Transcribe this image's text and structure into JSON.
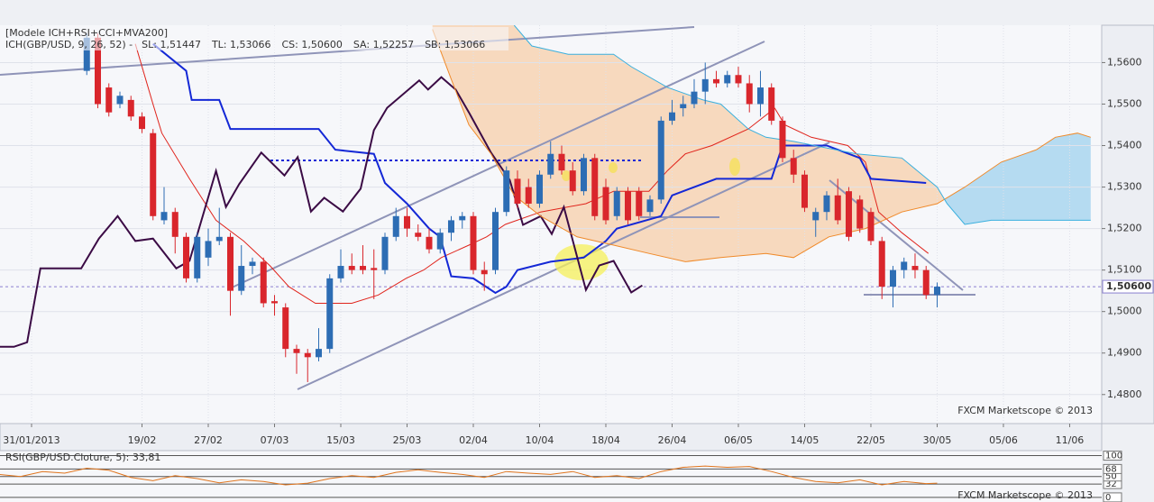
{
  "chart_data": [
    {
      "type": "candlestick",
      "title": "[Modele ICH+RSI+CCI+MVA200]",
      "subtitle": "ICH(GBP/USD, 9, 26, 52) -",
      "watermark": "FXCM Marketscope © 2013",
      "up_color": "#2d6db4",
      "down_color": "#d9262c",
      "x": [
        5,
        6,
        7,
        8,
        9,
        10,
        11,
        12,
        13,
        14,
        15,
        16,
        17,
        18,
        19,
        20,
        21,
        22,
        23,
        24,
        25,
        26,
        27,
        28,
        29,
        30,
        31,
        32,
        33,
        34,
        35,
        36,
        37,
        38,
        39,
        40,
        41,
        42,
        43,
        44,
        45,
        46,
        47,
        48,
        49,
        50,
        51,
        52,
        53,
        54,
        55,
        56,
        57,
        58,
        59,
        60,
        61,
        62,
        63,
        64,
        65,
        66,
        67,
        68,
        69,
        70,
        71,
        72,
        73,
        74,
        75,
        76,
        77,
        78,
        79,
        80,
        81,
        82
      ],
      "open": [
        1.558,
        1.566,
        1.554,
        1.55,
        1.551,
        1.547,
        1.543,
        1.522,
        1.524,
        1.518,
        1.508,
        1.513,
        1.517,
        1.518,
        1.505,
        1.511,
        1.512,
        1.5025,
        1.501,
        1.491,
        1.49,
        1.489,
        1.491,
        1.508,
        1.511,
        1.511,
        1.5105,
        1.51,
        1.518,
        1.523,
        1.519,
        1.518,
        1.515,
        1.519,
        1.522,
        1.523,
        1.51,
        1.51,
        1.524,
        1.532,
        1.53,
        1.526,
        1.533,
        1.538,
        1.534,
        1.529,
        1.537,
        1.53,
        1.523,
        1.529,
        1.529,
        1.524,
        1.527,
        1.546,
        1.549,
        1.55,
        1.553,
        1.556,
        1.555,
        1.557,
        1.555,
        1.55,
        1.554,
        1.546,
        1.537,
        1.533,
        1.522,
        1.524,
        1.528,
        1.529,
        1.527,
        1.524,
        1.517,
        1.506,
        1.51,
        1.511,
        1.51,
        1.504
      ],
      "high": [
        1.567,
        1.567,
        1.555,
        1.553,
        1.552,
        1.548,
        1.544,
        1.53,
        1.525,
        1.519,
        1.519,
        1.52,
        1.525,
        1.519,
        1.516,
        1.513,
        1.513,
        1.504,
        1.502,
        1.492,
        1.491,
        1.496,
        1.509,
        1.515,
        1.514,
        1.516,
        1.515,
        1.519,
        1.525,
        1.525,
        1.521,
        1.52,
        1.52,
        1.523,
        1.524,
        1.524,
        1.512,
        1.525,
        1.535,
        1.534,
        1.532,
        1.534,
        1.541,
        1.54,
        1.536,
        1.538,
        1.538,
        1.532,
        1.53,
        1.53,
        1.53,
        1.528,
        1.547,
        1.551,
        1.552,
        1.556,
        1.56,
        1.558,
        1.558,
        1.559,
        1.557,
        1.558,
        1.555,
        1.547,
        1.539,
        1.534,
        1.525,
        1.529,
        1.532,
        1.53,
        1.528,
        1.525,
        1.518,
        1.511,
        1.513,
        1.514,
        1.511,
        1.507
      ],
      "low": [
        1.557,
        1.549,
        1.547,
        1.549,
        1.546,
        1.543,
        1.522,
        1.521,
        1.514,
        1.507,
        1.507,
        1.511,
        1.516,
        1.499,
        1.504,
        1.509,
        1.501,
        1.499,
        1.489,
        1.485,
        1.483,
        1.488,
        1.49,
        1.507,
        1.509,
        1.509,
        1.503,
        1.509,
        1.517,
        1.518,
        1.517,
        1.514,
        1.514,
        1.517,
        1.52,
        1.509,
        1.505,
        1.509,
        1.523,
        1.525,
        1.525,
        1.525,
        1.532,
        1.533,
        1.528,
        1.528,
        1.522,
        1.521,
        1.522,
        1.521,
        1.522,
        1.523,
        1.526,
        1.545,
        1.547,
        1.549,
        1.55,
        1.554,
        1.554,
        1.554,
        1.548,
        1.547,
        1.545,
        1.536,
        1.531,
        1.524,
        1.518,
        1.522,
        1.521,
        1.517,
        1.519,
        1.516,
        1.503,
        1.501,
        1.508,
        1.508,
        1.503,
        1.501
      ],
      "close": [
        1.566,
        1.55,
        1.548,
        1.552,
        1.547,
        1.544,
        1.523,
        1.524,
        1.518,
        1.508,
        1.518,
        1.517,
        1.518,
        1.505,
        1.511,
        1.512,
        1.502,
        1.502,
        1.491,
        1.49,
        1.489,
        1.491,
        1.508,
        1.511,
        1.51,
        1.51,
        1.51,
        1.518,
        1.523,
        1.52,
        1.518,
        1.515,
        1.519,
        1.522,
        1.523,
        1.51,
        1.509,
        1.524,
        1.534,
        1.526,
        1.526,
        1.533,
        1.538,
        1.534,
        1.529,
        1.537,
        1.523,
        1.522,
        1.529,
        1.522,
        1.523,
        1.527,
        1.546,
        1.548,
        1.55,
        1.553,
        1.556,
        1.555,
        1.557,
        1.555,
        1.55,
        1.554,
        1.546,
        1.537,
        1.533,
        1.525,
        1.524,
        1.528,
        1.522,
        1.518,
        1.52,
        1.517,
        1.506,
        1.51,
        1.512,
        1.51,
        1.504,
        1.506
      ],
      "series": [
        {
          "name": "SL: 1,51447",
          "color": "#e0241c",
          "x": [
            9.4,
            11.0,
            11.8,
            14.3,
            16.7,
            19.2,
            21.6,
            23.3,
            25.7,
            29.0,
            31.4,
            33.9,
            35.5,
            37.1,
            39.6,
            41.2,
            42.9,
            46.1,
            50.2,
            52.7,
            55.9,
            57.6,
            59.2,
            61.6,
            64.9,
            67.3,
            68.2,
            70.6,
            73.9,
            75.5,
            76.7,
            78.8,
            81.2
          ],
          "values": [
            1.5645,
            1.55,
            1.543,
            1.532,
            1.522,
            1.517,
            1.511,
            1.506,
            1.502,
            1.502,
            1.504,
            1.508,
            1.51,
            1.513,
            1.516,
            1.518,
            1.521,
            1.524,
            1.526,
            1.529,
            1.529,
            1.534,
            1.538,
            1.54,
            1.544,
            1.549,
            1.545,
            1.542,
            1.54,
            1.536,
            1.524,
            1.519,
            1.514
          ]
        },
        {
          "name": "TL: 1,53066",
          "color": "#1428d6",
          "x": [
            11,
            14,
            14.5,
            17,
            18,
            26,
            27.5,
            31,
            32,
            34,
            36,
            37,
            38,
            40,
            42,
            43,
            44,
            47,
            50,
            52,
            53,
            57,
            58,
            62,
            67,
            68,
            72,
            75,
            76,
            81
          ],
          "values": [
            1.5645,
            1.558,
            1.551,
            1.551,
            1.544,
            1.544,
            1.539,
            1.538,
            1.531,
            1.526,
            1.52,
            1.518,
            1.5085,
            1.508,
            1.5045,
            1.506,
            1.51,
            1.512,
            1.513,
            1.517,
            1.52,
            1.523,
            1.528,
            1.532,
            1.532,
            1.54,
            1.54,
            1.537,
            1.532,
            1.531
          ]
        },
        {
          "name": "CS: 1,50600",
          "color": "#3b0b45",
          "x": [
            -2.9,
            -1.6,
            -0.4,
            0.8,
            2.0,
            4.5,
            6.1,
            7.8,
            9.4,
            11.0,
            13.1,
            14.3,
            16.7,
            17.6,
            18.8,
            20.8,
            22.9,
            24.1,
            25.3,
            26.5,
            28.2,
            29.8,
            31.0,
            32.2,
            35.1,
            35.9,
            37.1,
            38.4,
            39.6,
            41.6,
            43.3,
            44.5,
            46.1,
            47.1,
            48.2,
            50.2,
            51.4,
            52.7,
            54.3,
            55.3
          ],
          "values": [
            1.4915,
            1.4915,
            1.4926,
            1.5104,
            1.5104,
            1.5104,
            1.5176,
            1.523,
            1.517,
            1.5176,
            1.5104,
            1.5122,
            1.5339,
            1.5252,
            1.5307,
            1.5383,
            1.5328,
            1.5372,
            1.5241,
            1.5274,
            1.5241,
            1.5296,
            1.5437,
            1.5491,
            1.5557,
            1.5535,
            1.5565,
            1.5535,
            1.548,
            1.5383,
            1.5317,
            1.5209,
            1.523,
            1.5187,
            1.5252,
            1.5052,
            1.5111,
            1.5122,
            1.5046,
            1.5063
          ]
        },
        {
          "name": "SA: 1,52257",
          "color": "#f08a2a",
          "x": [
            36.3,
            38.0,
            39.6,
            41.6,
            43.7,
            46.1,
            49.4,
            52.7,
            55.9,
            59.2,
            62.4,
            66.5,
            69.0,
            72.2,
            75.5,
            78.8,
            82.0,
            84.5,
            87.8,
            91.0,
            92.7,
            94.7,
            95.9
          ],
          "values": [
            1.568,
            1.556,
            1.545,
            1.538,
            1.528,
            1.523,
            1.518,
            1.516,
            1.514,
            1.512,
            1.513,
            1.514,
            1.513,
            1.518,
            1.52,
            1.524,
            1.526,
            1.53,
            1.536,
            1.539,
            1.542,
            1.543,
            1.542
          ]
        },
        {
          "name": "SB: 1,53066",
          "color": "#3ab0de",
          "x": [
            43.7,
            45.3,
            48.6,
            52.7,
            54.3,
            57.6,
            60.8,
            62.4,
            64.9,
            66.5,
            69.0,
            74.7,
            78.8,
            82.0,
            82.9,
            84.5,
            86.9,
            95.9
          ],
          "values": [
            1.569,
            1.564,
            1.562,
            1.562,
            1.559,
            1.554,
            1.551,
            1.55,
            1.544,
            1.542,
            1.541,
            1.538,
            1.537,
            1.53,
            1.526,
            1.521,
            1.522,
            1.522
          ]
        }
      ],
      "last_price": {
        "value": 1.506,
        "label": "1,50600"
      },
      "xlim": [
        -2.857,
        96.9
      ],
      "ylim": [
        1.473,
        1.569
      ],
      "xticks": [
        {
          "value": 0,
          "label": "31/01/2013"
        },
        {
          "value": 10,
          "label": "19/02"
        },
        {
          "value": 16,
          "label": "27/02"
        },
        {
          "value": 22,
          "label": "07/03"
        },
        {
          "value": 28,
          "label": "15/03"
        },
        {
          "value": 34,
          "label": "25/03"
        },
        {
          "value": 40,
          "label": "02/04"
        },
        {
          "value": 46,
          "label": "10/04"
        },
        {
          "value": 52,
          "label": "18/04"
        },
        {
          "value": 58,
          "label": "26/04"
        },
        {
          "value": 64,
          "label": "06/05"
        },
        {
          "value": 70,
          "label": "14/05"
        },
        {
          "value": 76,
          "label": "22/05"
        },
        {
          "value": 82,
          "label": "30/05"
        },
        {
          "value": 88,
          "label": "05/06"
        },
        {
          "value": 94,
          "label": "11/06"
        }
      ],
      "yticks": [
        {
          "value": 1.48,
          "label": "1,4800"
        },
        {
          "value": 1.49,
          "label": "1,4900"
        },
        {
          "value": 1.5,
          "label": "1,5000"
        },
        {
          "value": 1.51,
          "label": "1,5100"
        },
        {
          "value": 1.52,
          "label": "1,5200"
        },
        {
          "value": 1.53,
          "label": "1,5300"
        },
        {
          "value": 1.54,
          "label": "1,5400"
        },
        {
          "value": 1.55,
          "label": "1,5500"
        },
        {
          "value": 1.56,
          "label": "1,5600"
        }
      ],
      "grid": true
    },
    {
      "type": "line",
      "title": "RSI(GBP/USD.Cloture, 5): 33,81",
      "watermark": "FXCM Marketscope © 2013",
      "series": [
        {
          "color": "#e0741c",
          "x": [
            -2.9,
            -1,
            1,
            3,
            5,
            7,
            9,
            11,
            13,
            15,
            17,
            19,
            21,
            23,
            25,
            27,
            29,
            31,
            33,
            35,
            37,
            39,
            41,
            43,
            45,
            47,
            49,
            51,
            53,
            55,
            57,
            59,
            61,
            63,
            65,
            67,
            69,
            71,
            73,
            75,
            77,
            79,
            81,
            82
          ],
          "values": [
            55,
            50,
            62,
            58,
            70,
            65,
            48,
            40,
            52,
            45,
            35,
            42,
            38,
            30,
            34,
            45,
            52,
            48,
            60,
            66,
            60,
            55,
            48,
            62,
            58,
            55,
            62,
            48,
            52,
            45,
            62,
            72,
            75,
            72,
            74,
            62,
            48,
            38,
            35,
            42,
            30,
            38,
            33,
            34
          ]
        }
      ],
      "xlim": [
        -2.857,
        96.9
      ],
      "ylim": [
        -11,
        112
      ],
      "yticks": [
        0,
        32,
        50,
        68,
        100
      ]
    }
  ]
}
